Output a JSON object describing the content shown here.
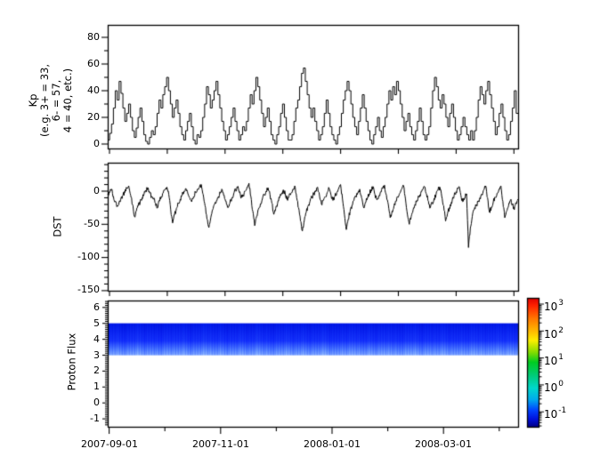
{
  "figure": {
    "bg": "#ffffff",
    "fg": "#000000"
  },
  "kp_panel": {
    "ylabel_lines": [
      "Kp",
      "(e.g. 3+ = 33,",
      "6- = 57,",
      "4 = 40, etc.)"
    ],
    "ytick_labels": [
      "80",
      "60",
      "40",
      "20",
      "0"
    ]
  },
  "dst_panel": {
    "ylabel": "DST",
    "ytick_labels": [
      "0",
      "-50",
      "-100",
      "-150"
    ]
  },
  "proton_panel": {
    "ylabel": "Proton Flux",
    "ytick_labels": [
      "6",
      "5",
      "4",
      "3",
      "2",
      "1",
      "0",
      "-1"
    ]
  },
  "xaxis": {
    "labels": [
      "2007-09-01",
      "2007-11-01",
      "2008-01-01",
      "2008-03-01"
    ]
  },
  "colorbar": {
    "ticks": [
      {
        "base": "10",
        "exp": "3"
      },
      {
        "base": "10",
        "exp": "2"
      },
      {
        "base": "10",
        "exp": "1"
      },
      {
        "base": "10",
        "exp": "0"
      },
      {
        "base": "10",
        "exp": "-1"
      }
    ],
    "gradient": [
      [
        0.0,
        "#dd0000"
      ],
      [
        0.06,
        "#ff2200"
      ],
      [
        0.16,
        "#ff7700"
      ],
      [
        0.26,
        "#ffbb00"
      ],
      [
        0.33,
        "#fdee00"
      ],
      [
        0.42,
        "#88dd00"
      ],
      [
        0.5,
        "#00cc22"
      ],
      [
        0.6,
        "#00cc77"
      ],
      [
        0.7,
        "#00d8cc"
      ],
      [
        0.79,
        "#00aaee"
      ],
      [
        0.87,
        "#0044ff"
      ],
      [
        0.94,
        "#0011dd"
      ],
      [
        1.0,
        "#000088"
      ]
    ]
  },
  "chart_data": [
    {
      "type": "line",
      "style": "steps",
      "title": "Kp",
      "ylabel": "Kp (e.g. 3+ = 33, 6- = 57, 4 = 40, etc.)",
      "ylim": [
        -3,
        89
      ],
      "yticks": [
        0,
        20,
        40,
        60,
        80
      ],
      "x_labels": [
        "2007-09-01",
        "2007-11-01",
        "2008-01-01",
        "2008-03-01"
      ],
      "n_month_ticks": 8,
      "values": [
        3,
        8,
        15,
        27,
        40,
        33,
        47,
        38,
        27,
        17,
        23,
        30,
        20,
        10,
        5,
        12,
        20,
        27,
        17,
        7,
        2,
        0,
        5,
        10,
        7,
        13,
        23,
        33,
        27,
        37,
        43,
        50,
        40,
        30,
        20,
        27,
        33,
        23,
        13,
        7,
        3,
        10,
        17,
        23,
        13,
        3,
        0,
        7,
        5,
        10,
        20,
        30,
        43,
        37,
        27,
        33,
        40,
        47,
        37,
        27,
        17,
        10,
        3,
        7,
        13,
        20,
        27,
        17,
        10,
        3,
        7,
        13,
        10,
        17,
        27,
        37,
        30,
        40,
        50,
        43,
        33,
        23,
        13,
        20,
        27,
        17,
        7,
        3,
        0,
        7,
        13,
        23,
        30,
        20,
        10,
        3,
        3,
        7,
        17,
        27,
        33,
        43,
        53,
        57,
        47,
        37,
        27,
        20,
        27,
        17,
        10,
        3,
        7,
        13,
        23,
        33,
        23,
        13,
        7,
        3,
        0,
        7,
        13,
        23,
        33,
        40,
        47,
        40,
        30,
        20,
        13,
        7,
        17,
        27,
        37,
        27,
        17,
        10,
        3,
        0,
        7,
        13,
        20,
        10,
        5,
        13,
        20,
        30,
        40,
        33,
        43,
        37,
        47,
        40,
        30,
        20,
        10,
        17,
        23,
        13,
        7,
        3,
        10,
        17,
        27,
        17,
        7,
        3,
        7,
        13,
        27,
        40,
        50,
        43,
        33,
        27,
        37,
        30,
        20,
        13,
        23,
        30,
        20,
        10,
        3,
        7,
        13,
        20,
        13,
        7,
        3,
        10,
        3,
        10,
        20,
        33,
        43,
        37,
        30,
        40,
        47,
        37,
        27,
        17,
        7,
        13,
        23,
        30,
        20,
        10,
        3,
        7,
        17,
        27,
        40,
        23
      ]
    },
    {
      "type": "line",
      "title": "DST",
      "ylim": [
        -153,
        43
      ],
      "yticks": [
        0,
        -50,
        -100,
        -150
      ],
      "x_labels": [
        "2007-09-01",
        "2007-11-01",
        "2008-01-01",
        "2008-03-01"
      ],
      "n_month_ticks": 8,
      "values": [
        -5,
        -2,
        3,
        -8,
        -15,
        -22,
        -16,
        -10,
        -6,
        -2,
        4,
        8,
        -6,
        -20,
        -38,
        -30,
        -22,
        -16,
        -10,
        -5,
        0,
        5,
        -3,
        -8,
        -12,
        -18,
        -25,
        -15,
        -8,
        -3,
        2,
        6,
        -5,
        -28,
        -48,
        -36,
        -26,
        -18,
        -12,
        -6,
        0,
        4,
        -4,
        -10,
        -16,
        -8,
        -2,
        3,
        5,
        10,
        -5,
        -22,
        -42,
        -55,
        -40,
        -28,
        -20,
        -14,
        -8,
        -3,
        2,
        -6,
        -15,
        -25,
        -18,
        -10,
        -4,
        2,
        6,
        -2,
        -10,
        -6,
        0,
        6,
        12,
        -8,
        -30,
        -52,
        -38,
        -27,
        -19,
        -12,
        -6,
        0,
        5,
        -5,
        -18,
        -35,
        -26,
        -18,
        -10,
        -4,
        2,
        -4,
        -12,
        -7,
        -3,
        3,
        8,
        -10,
        -25,
        -45,
        -60,
        -44,
        -32,
        -22,
        -15,
        -9,
        -4,
        1,
        6,
        -8,
        -20,
        -14,
        -8,
        -2,
        4,
        -6,
        -14,
        -8,
        -2,
        4,
        10,
        -12,
        -35,
        -58,
        -42,
        -30,
        -21,
        -14,
        -8,
        -2,
        3,
        -10,
        -24,
        -17,
        -10,
        -4,
        2,
        7,
        -5,
        -13,
        -7,
        -1,
        4,
        9,
        -6,
        -20,
        -40,
        -30,
        -22,
        -15,
        -9,
        -3,
        3,
        8,
        -12,
        -35,
        -50,
        -38,
        -28,
        -20,
        -14,
        -8,
        -3,
        2,
        6,
        -4,
        -15,
        -25,
        -18,
        -11,
        -5,
        1,
        6,
        -8,
        -22,
        -45,
        -34,
        -25,
        -17,
        -10,
        -4,
        2,
        7,
        -6,
        -16,
        -10,
        -4,
        -85,
        -55,
        -38,
        -28,
        -22,
        -16,
        -10,
        -4,
        2,
        8,
        -10,
        -32,
        -24,
        -16,
        -9,
        -3,
        3,
        8,
        -15,
        -40,
        -30,
        -22,
        -14,
        -20,
        -28,
        -18,
        -12
      ]
    },
    {
      "type": "heatmap",
      "title": "Proton Flux",
      "ylim": [
        -1.5,
        6.5
      ],
      "yticks": [
        -1,
        0,
        1,
        2,
        3,
        4,
        5,
        6
      ],
      "band_y": [
        3,
        5
      ],
      "colorbar_tick_values": [
        "1e3",
        "1e2",
        "1e1",
        "1e0",
        "1e-1"
      ],
      "approx_flux_range": [
        0.1,
        0.5
      ],
      "columns": [
        0.35,
        0.6,
        0.25,
        0.45,
        0.7,
        0.3,
        0.5,
        0.2,
        0.55,
        0.4,
        0.65,
        0.3,
        0.5,
        0.75,
        0.35,
        0.55,
        0.25,
        0.45,
        0.6,
        0.3,
        0.7,
        0.4,
        0.25,
        0.5,
        0.65,
        0.35,
        0.55,
        0.3,
        0.45,
        0.7,
        0.25,
        0.5,
        0.4,
        0.6,
        0.3,
        0.55,
        0.35,
        0.65,
        0.45,
        0.25,
        0.5,
        0.7,
        0.3,
        0.55,
        0.4,
        0.6,
        0.25,
        0.45,
        0.35,
        0.65,
        0.5,
        0.3,
        0.6,
        0.4,
        0.55,
        0.35
      ]
    }
  ]
}
